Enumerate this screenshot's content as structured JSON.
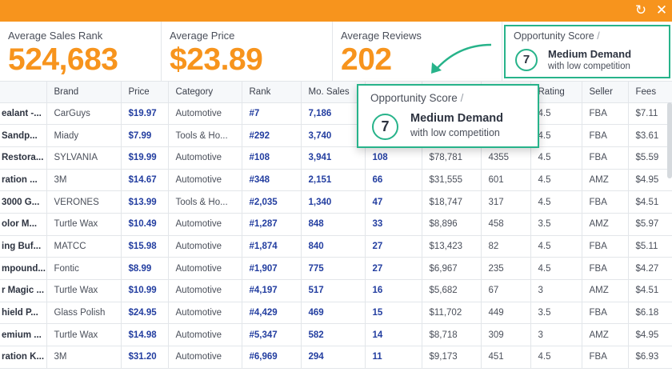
{
  "window": {
    "refresh_icon": "refresh-icon",
    "close_icon": "close-icon"
  },
  "stats": [
    {
      "label": "Average Sales Rank",
      "value": "524,683"
    },
    {
      "label": "Average Price",
      "value": "$23.89"
    },
    {
      "label": "Average Reviews",
      "value": "202"
    }
  ],
  "opportunity": {
    "title": "Opportunity Score",
    "slash": "/",
    "score": "7",
    "demand": "Medium Demand",
    "competition": "with low competition"
  },
  "colors": {
    "accent": "#f7941d",
    "score_border": "#27b38a",
    "value_blue": "#233ea0"
  },
  "table": {
    "columns": [
      "",
      "Brand",
      "Price",
      "Category",
      "Rank",
      "Mo. Sales",
      "",
      "",
      "",
      "Rating",
      "Seller",
      "Fees"
    ],
    "rows": [
      [
        "ealant -...",
        "CarGuys",
        "$19.97",
        "Automotive",
        "#7",
        "7,186",
        "",
        "",
        "",
        "4.5",
        "FBA",
        "$7.11"
      ],
      [
        "Sandp...",
        "Miady",
        "$7.99",
        "Tools & Ho...",
        "#292",
        "3,740",
        "",
        "",
        "",
        "4.5",
        "FBA",
        "$3.61"
      ],
      [
        "Restora...",
        "SYLVANIA",
        "$19.99",
        "Automotive",
        "#108",
        "3,941",
        "108",
        "$78,781",
        "4355",
        "4.5",
        "FBA",
        "$5.59"
      ],
      [
        "ration ...",
        "3M",
        "$14.67",
        "Automotive",
        "#348",
        "2,151",
        "66",
        "$31,555",
        "601",
        "4.5",
        "AMZ",
        "$4.95"
      ],
      [
        "3000 G...",
        "VERONES",
        "$13.99",
        "Tools & Ho...",
        "#2,035",
        "1,340",
        "47",
        "$18,747",
        "317",
        "4.5",
        "FBA",
        "$4.51"
      ],
      [
        "olor M...",
        "Turtle Wax",
        "$10.49",
        "Automotive",
        "#1,287",
        "848",
        "33",
        "$8,896",
        "458",
        "3.5",
        "AMZ",
        "$5.97"
      ],
      [
        "ing Buf...",
        "MATCC",
        "$15.98",
        "Automotive",
        "#1,874",
        "840",
        "27",
        "$13,423",
        "82",
        "4.5",
        "FBA",
        "$5.11"
      ],
      [
        "mpound...",
        "Fontic",
        "$8.99",
        "Automotive",
        "#1,907",
        "775",
        "27",
        "$6,967",
        "235",
        "4.5",
        "FBA",
        "$4.27"
      ],
      [
        "r Magic ...",
        "Turtle Wax",
        "$10.99",
        "Automotive",
        "#4,197",
        "517",
        "16",
        "$5,682",
        "67",
        "3",
        "AMZ",
        "$4.51"
      ],
      [
        "hield P...",
        "Glass Polish",
        "$24.95",
        "Automotive",
        "#4,429",
        "469",
        "15",
        "$11,702",
        "449",
        "3.5",
        "FBA",
        "$6.18"
      ],
      [
        "emium ...",
        "Turtle Wax",
        "$14.98",
        "Automotive",
        "#5,347",
        "582",
        "14",
        "$8,718",
        "309",
        "3",
        "AMZ",
        "$4.95"
      ],
      [
        "ration K...",
        "3M",
        "$31.20",
        "Automotive",
        "#6,969",
        "294",
        "11",
        "$9,173",
        "451",
        "4.5",
        "FBA",
        "$6.93"
      ]
    ]
  }
}
